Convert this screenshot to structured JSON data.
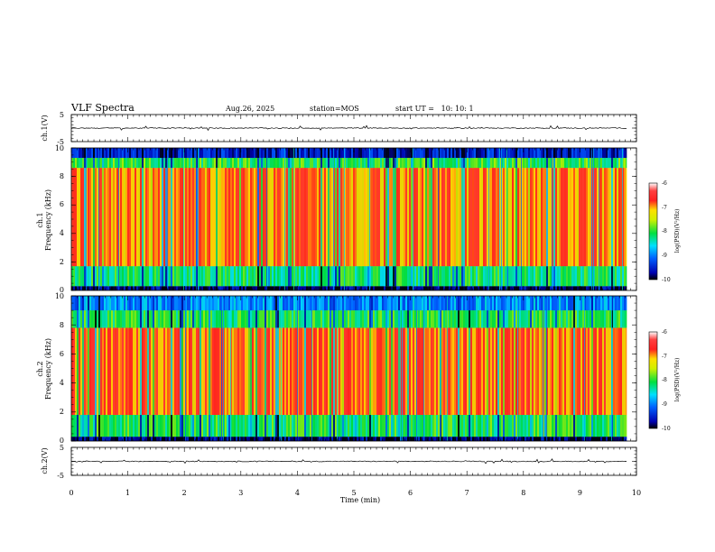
{
  "header": {
    "title": "VLF Spectra",
    "date": "Aug.26, 2025",
    "station": "station=MOS",
    "start": "start UT =   10: 10: 1"
  },
  "chart_data": [
    {
      "type": "line",
      "name": "ch1-waveform",
      "ylabel": "ch.1(V)",
      "xlim": [
        0,
        10
      ],
      "ylim": [
        -5,
        5
      ],
      "yticks": [
        "5",
        "-5"
      ],
      "series": [
        {
          "name": "ch.1",
          "baseline": 0,
          "duration_min": 9.83
        }
      ]
    },
    {
      "type": "heatmap",
      "name": "ch1-spectrogram",
      "ylabel": "Frequency (kHz)",
      "ylabel2": "ch.1",
      "xlim": [
        0,
        10
      ],
      "ylim": [
        0,
        10
      ],
      "yticks": [
        "0",
        "2",
        "4",
        "6",
        "8",
        "10"
      ],
      "duration_min": 9.83,
      "bands": [
        {
          "f_low": 0.0,
          "f_high": 0.3,
          "level": -9.8
        },
        {
          "f_low": 0.3,
          "f_high": 1.7,
          "level": -8.2
        },
        {
          "f_low": 1.7,
          "f_high": 8.6,
          "level": -7.0
        },
        {
          "f_low": 8.6,
          "f_high": 9.3,
          "level": -8.0
        },
        {
          "f_low": 9.3,
          "f_high": 10.0,
          "level": -9.5
        }
      ],
      "colorbar": {
        "label": "log(PSD)(V²/Hz)",
        "min": -10,
        "max": -6,
        "ticks": [
          "-6",
          "-7",
          "-8",
          "-9",
          "-10"
        ]
      }
    },
    {
      "type": "heatmap",
      "name": "ch2-spectrogram",
      "ylabel": "Frequency (kHz)",
      "ylabel2": "ch.2",
      "xlim": [
        0,
        10
      ],
      "ylim": [
        0,
        10
      ],
      "yticks": [
        "0",
        "2",
        "4",
        "6",
        "8",
        "10"
      ],
      "duration_min": 9.83,
      "bands": [
        {
          "f_low": 0.0,
          "f_high": 0.3,
          "level": -9.8
        },
        {
          "f_low": 0.3,
          "f_high": 1.8,
          "level": -8.1
        },
        {
          "f_low": 1.8,
          "f_high": 7.8,
          "level": -6.9
        },
        {
          "f_low": 7.8,
          "f_high": 9.0,
          "level": -8.1
        },
        {
          "f_low": 9.0,
          "f_high": 10.0,
          "level": -8.9
        }
      ],
      "colorbar": {
        "label": "log(PSD)(V²/Hz)",
        "min": -10,
        "max": -6,
        "ticks": [
          "-6",
          "-7",
          "-8",
          "-9",
          "-10"
        ]
      }
    },
    {
      "type": "line",
      "name": "ch2-waveform",
      "ylabel": "ch.2(V)",
      "xlim": [
        0,
        10
      ],
      "ylim": [
        -5,
        5
      ],
      "yticks": [
        "5",
        "-5"
      ],
      "xlabel": "Time (min)",
      "xticks": [
        "0",
        "1",
        "2",
        "3",
        "4",
        "5",
        "6",
        "7",
        "8",
        "9",
        "10"
      ],
      "series": [
        {
          "name": "ch.2",
          "baseline": 0,
          "duration_min": 9.83
        }
      ]
    }
  ],
  "colors": {
    "axis": "#000000",
    "background": "#ffffff"
  }
}
